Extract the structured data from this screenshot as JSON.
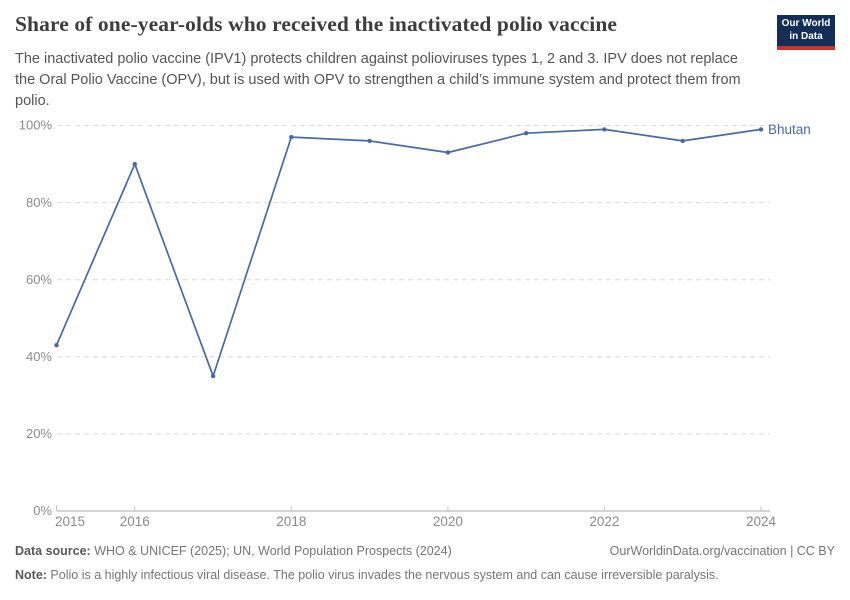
{
  "header": {
    "logo": {
      "line1": "Our World",
      "line2": "in Data",
      "bg_color": "#132f57",
      "accent_color": "#c8342b"
    }
  },
  "chart_data": {
    "type": "line",
    "title": "Share of one-year-olds who received the inactivated polio vaccine",
    "subtitle": "The inactivated polio vaccine (IPV1) protects children against polioviruses types 1, 2 and 3. IPV does not replace the Oral Polio Vaccine (OPV), but is used with OPV to strengthen a child’s immune system and protect them from polio.",
    "x": [
      2015,
      2016,
      2017,
      2018,
      2019,
      2020,
      2021,
      2022,
      2023,
      2024
    ],
    "series": [
      {
        "name": "Bhutan",
        "values": [
          43,
          90,
          35,
          97,
          96,
          93,
          98,
          99,
          96,
          99
        ],
        "color": "#486aa4"
      }
    ],
    "xlabel": "",
    "ylabel": "",
    "ylim": [
      0,
      100
    ],
    "yticks": [
      0,
      20,
      40,
      60,
      80,
      100
    ],
    "ytick_suffix": "%",
    "xticks": [
      2015,
      2016,
      2018,
      2020,
      2022,
      2024
    ],
    "grid": "horizontal-dashed",
    "legend_position": "line-end-label",
    "axis_color": "#a8a8a8",
    "gridline_color": "#dadada",
    "tick_label_color": "#8b8b8b"
  },
  "footer": {
    "datasource_label": "Data source:",
    "datasource_text": " WHO & UNICEF (2025); UN, World Population Prospects (2024)",
    "license_text": "OurWorldinData.org/vaccination | CC BY",
    "note_label": "Note:",
    "note_text": " Polio is a highly infectious viral disease. The polio virus invades the nervous system and can cause irreversible paralysis."
  }
}
